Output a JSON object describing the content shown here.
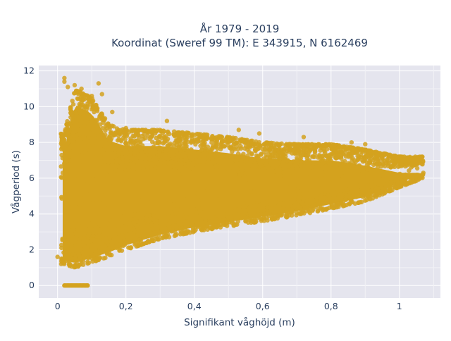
{
  "chart_data": {
    "type": "scatter",
    "title_lines": [
      "År 1979 - 2019",
      "Koordinat (Sweref 99 TM): E 343915, N 6162469"
    ],
    "xlabel": "Signifikant våghöjd (m)",
    "ylabel": "Vågperiod (s)",
    "xlim": [
      -0.055,
      1.12
    ],
    "ylim": [
      -0.7,
      12.3
    ],
    "xticks": [
      0,
      0.2,
      0.4,
      0.6,
      0.8,
      1
    ],
    "xtick_labels": [
      "0",
      "0,2",
      "0,4",
      "0,6",
      "0,8",
      "1"
    ],
    "yticks": [
      0,
      2,
      4,
      6,
      8,
      10,
      12
    ],
    "ytick_labels": [
      "0",
      "2",
      "4",
      "6",
      "8",
      "10",
      "12"
    ],
    "grid": true,
    "legend": "none",
    "marker_color": "#D4A21E",
    "background_color": "#E5E5EE",
    "density_envelope": [
      {
        "x": 0.02,
        "ymin": 1.2,
        "ymax": 8.5
      },
      {
        "x": 0.05,
        "ymin": 1.0,
        "ymax": 11.0
      },
      {
        "x": 0.1,
        "ymin": 1.3,
        "ymax": 10.5
      },
      {
        "x": 0.15,
        "ymin": 1.6,
        "ymax": 9.0
      },
      {
        "x": 0.2,
        "ymin": 2.0,
        "ymax": 8.7
      },
      {
        "x": 0.3,
        "ymin": 2.6,
        "ymax": 8.7
      },
      {
        "x": 0.4,
        "ymin": 3.0,
        "ymax": 8.5
      },
      {
        "x": 0.5,
        "ymin": 3.3,
        "ymax": 8.3
      },
      {
        "x": 0.6,
        "ymin": 3.6,
        "ymax": 8.0
      },
      {
        "x": 0.7,
        "ymin": 3.9,
        "ymax": 7.9
      },
      {
        "x": 0.8,
        "ymin": 4.3,
        "ymax": 7.9
      },
      {
        "x": 0.9,
        "ymin": 4.7,
        "ymax": 7.6
      },
      {
        "x": 1.0,
        "ymin": 5.5,
        "ymax": 7.2
      },
      {
        "x": 1.07,
        "ymin": 6.0,
        "ymax": 7.2
      }
    ],
    "outliers": [
      {
        "x": 0.02,
        "y": 11.6
      },
      {
        "x": 0.02,
        "y": 11.4
      },
      {
        "x": 0.03,
        "y": 11.1
      },
      {
        "x": 0.05,
        "y": 11.2
      },
      {
        "x": 0.07,
        "y": 11.0
      },
      {
        "x": 0.12,
        "y": 11.3
      },
      {
        "x": 0.1,
        "y": 10.6
      },
      {
        "x": 0.13,
        "y": 10.7
      },
      {
        "x": 0.16,
        "y": 9.7
      },
      {
        "x": 0.2,
        "y": 8.8
      },
      {
        "x": 0.32,
        "y": 9.2
      },
      {
        "x": 0.53,
        "y": 8.7
      },
      {
        "x": 0.59,
        "y": 8.5
      },
      {
        "x": 0.72,
        "y": 8.3
      },
      {
        "x": 0.86,
        "y": 8.0
      },
      {
        "x": 0.9,
        "y": 7.9
      },
      {
        "x": 1.0,
        "y": 7.2
      },
      {
        "x": 1.06,
        "y": 7.2
      },
      {
        "x": 1.04,
        "y": 6.7
      },
      {
        "x": 1.07,
        "y": 6.3
      },
      {
        "x": 0.0,
        "y": 1.6
      }
    ],
    "zero_period_segment": {
      "x_from": 0.02,
      "x_to": 0.09,
      "y": 0
    }
  }
}
